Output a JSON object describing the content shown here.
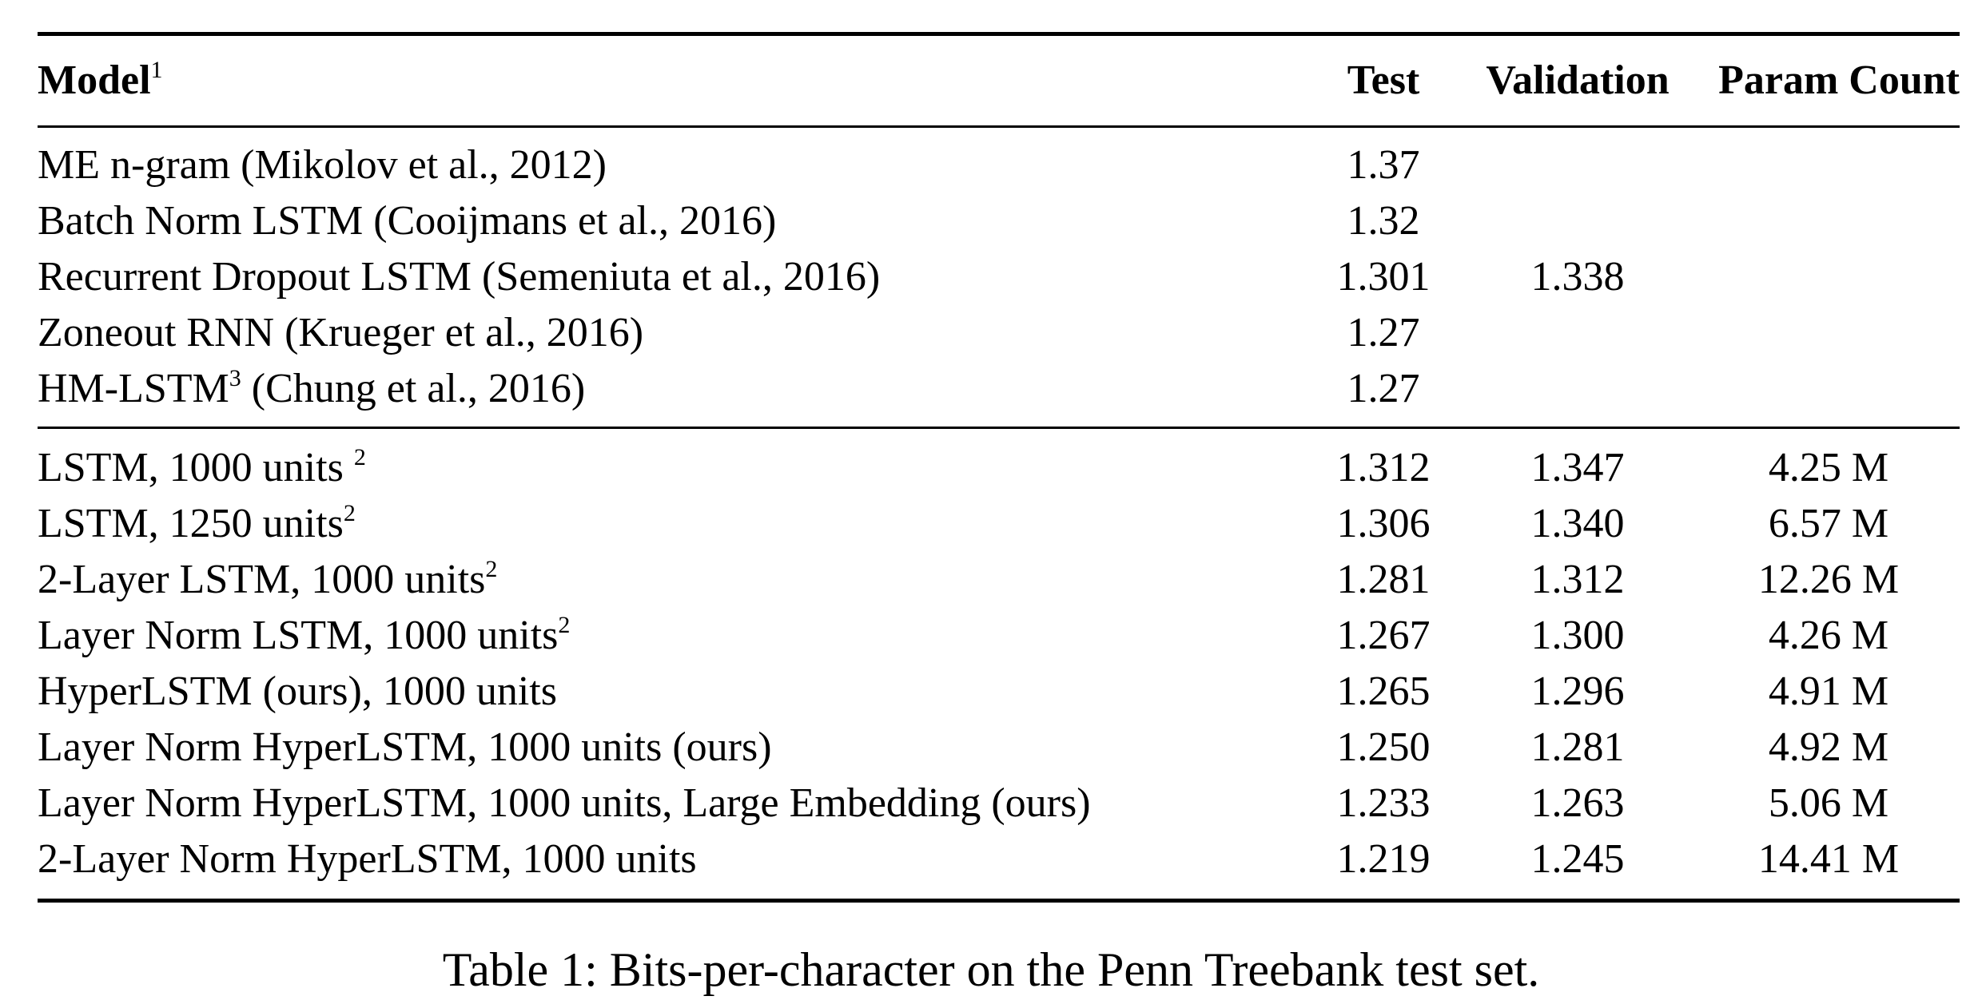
{
  "table": {
    "headers": {
      "model": "Model",
      "model_sup": "1",
      "test": "Test",
      "validation": "Validation",
      "param_count": "Param Count"
    },
    "group1": [
      {
        "model": "ME n-gram (Mikolov et al., 2012)",
        "sup": "",
        "test": "1.37",
        "validation": "",
        "param_count": ""
      },
      {
        "model": "Batch Norm LSTM (Cooijmans et al., 2016)",
        "sup": "",
        "test": "1.32",
        "validation": "",
        "param_count": ""
      },
      {
        "model": "Recurrent Dropout LSTM (Semeniuta et al., 2016)",
        "sup": "",
        "test": "1.301",
        "validation": "1.338",
        "param_count": ""
      },
      {
        "model": "Zoneout RNN (Krueger et al., 2016)",
        "sup": "",
        "test": "1.27",
        "validation": "",
        "param_count": ""
      },
      {
        "model": "HM-LSTM",
        "sup": "3",
        "model_suffix": " (Chung et al., 2016)",
        "test": "1.27",
        "validation": "",
        "param_count": ""
      }
    ],
    "group2": [
      {
        "model": "LSTM, 1000 units ",
        "sup": "2",
        "test": "1.312",
        "validation": "1.347",
        "param_count": "4.25 M"
      },
      {
        "model": "LSTM, 1250 units",
        "sup": "2",
        "test": "1.306",
        "validation": "1.340",
        "param_count": "6.57 M"
      },
      {
        "model": "2-Layer LSTM, 1000 units",
        "sup": "2",
        "test": "1.281",
        "validation": "1.312",
        "param_count": "12.26 M"
      },
      {
        "model": "Layer Norm LSTM, 1000 units",
        "sup": "2",
        "test": "1.267",
        "validation": "1.300",
        "param_count": "4.26 M"
      },
      {
        "model": "HyperLSTM (ours), 1000 units",
        "sup": "",
        "test": "1.265",
        "validation": "1.296",
        "param_count": "4.91 M"
      },
      {
        "model": "Layer Norm HyperLSTM, 1000 units (ours)",
        "sup": "",
        "test": "1.250",
        "validation": "1.281",
        "param_count": "4.92 M"
      },
      {
        "model": "Layer Norm HyperLSTM, 1000 units, Large Embedding (ours)",
        "sup": "",
        "test": "1.233",
        "validation": "1.263",
        "param_count": "5.06 M"
      },
      {
        "model": "2-Layer Norm HyperLSTM, 1000 units",
        "sup": "",
        "test": "1.219",
        "validation": "1.245",
        "param_count": "14.41 M"
      }
    ]
  },
  "caption": "Table 1: Bits-per-character on the Penn Treebank test set."
}
